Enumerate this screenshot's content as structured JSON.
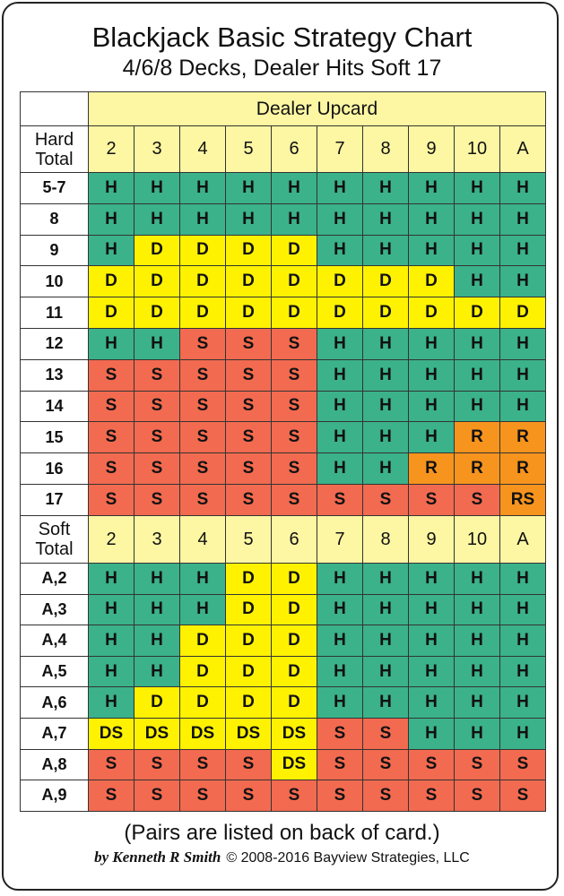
{
  "title": "Blackjack Basic Strategy Chart",
  "subtitle": "4/6/8 Decks, Dealer Hits Soft 17",
  "upcard_label": "Dealer Upcard",
  "cell_colors": {
    "H": "#3bb28a",
    "D": "#fff200",
    "DS": "#fff200",
    "S": "#f26a50",
    "R": "#f7941d",
    "RS": "#f7941d"
  },
  "header_color": "#fdf7a3",
  "sections": [
    {
      "label": "Hard Total",
      "upcards": [
        "2",
        "3",
        "4",
        "5",
        "6",
        "7",
        "8",
        "9",
        "10",
        "A"
      ],
      "rows": [
        {
          "label": "5-7",
          "cells": [
            "H",
            "H",
            "H",
            "H",
            "H",
            "H",
            "H",
            "H",
            "H",
            "H"
          ]
        },
        {
          "label": "8",
          "cells": [
            "H",
            "H",
            "H",
            "H",
            "H",
            "H",
            "H",
            "H",
            "H",
            "H"
          ]
        },
        {
          "label": "9",
          "cells": [
            "H",
            "D",
            "D",
            "D",
            "D",
            "H",
            "H",
            "H",
            "H",
            "H"
          ]
        },
        {
          "label": "10",
          "cells": [
            "D",
            "D",
            "D",
            "D",
            "D",
            "D",
            "D",
            "D",
            "H",
            "H"
          ]
        },
        {
          "label": "11",
          "cells": [
            "D",
            "D",
            "D",
            "D",
            "D",
            "D",
            "D",
            "D",
            "D",
            "D"
          ]
        },
        {
          "label": "12",
          "cells": [
            "H",
            "H",
            "S",
            "S",
            "S",
            "H",
            "H",
            "H",
            "H",
            "H"
          ]
        },
        {
          "label": "13",
          "cells": [
            "S",
            "S",
            "S",
            "S",
            "S",
            "H",
            "H",
            "H",
            "H",
            "H"
          ]
        },
        {
          "label": "14",
          "cells": [
            "S",
            "S",
            "S",
            "S",
            "S",
            "H",
            "H",
            "H",
            "H",
            "H"
          ]
        },
        {
          "label": "15",
          "cells": [
            "S",
            "S",
            "S",
            "S",
            "S",
            "H",
            "H",
            "H",
            "R",
            "R"
          ]
        },
        {
          "label": "16",
          "cells": [
            "S",
            "S",
            "S",
            "S",
            "S",
            "H",
            "H",
            "R",
            "R",
            "R"
          ]
        },
        {
          "label": "17",
          "cells": [
            "S",
            "S",
            "S",
            "S",
            "S",
            "S",
            "S",
            "S",
            "S",
            "RS"
          ]
        }
      ]
    },
    {
      "label": "Soft Total",
      "upcards": [
        "2",
        "3",
        "4",
        "5",
        "6",
        "7",
        "8",
        "9",
        "10",
        "A"
      ],
      "rows": [
        {
          "label": "A,2",
          "cells": [
            "H",
            "H",
            "H",
            "D",
            "D",
            "H",
            "H",
            "H",
            "H",
            "H"
          ]
        },
        {
          "label": "A,3",
          "cells": [
            "H",
            "H",
            "H",
            "D",
            "D",
            "H",
            "H",
            "H",
            "H",
            "H"
          ]
        },
        {
          "label": "A,4",
          "cells": [
            "H",
            "H",
            "D",
            "D",
            "D",
            "H",
            "H",
            "H",
            "H",
            "H"
          ]
        },
        {
          "label": "A,5",
          "cells": [
            "H",
            "H",
            "D",
            "D",
            "D",
            "H",
            "H",
            "H",
            "H",
            "H"
          ]
        },
        {
          "label": "A,6",
          "cells": [
            "H",
            "D",
            "D",
            "D",
            "D",
            "H",
            "H",
            "H",
            "H",
            "H"
          ]
        },
        {
          "label": "A,7",
          "cells": [
            "DS",
            "DS",
            "DS",
            "DS",
            "DS",
            "S",
            "S",
            "H",
            "H",
            "H"
          ]
        },
        {
          "label": "A,8",
          "cells": [
            "S",
            "S",
            "S",
            "S",
            "DS",
            "S",
            "S",
            "S",
            "S",
            "S"
          ]
        },
        {
          "label": "A,9",
          "cells": [
            "S",
            "S",
            "S",
            "S",
            "S",
            "S",
            "S",
            "S",
            "S",
            "S"
          ]
        }
      ]
    }
  ],
  "footnote": "(Pairs are listed on back of card.)",
  "author": "by Kenneth R Smith",
  "copyright": "© 2008-2016 Bayview Strategies, LLC"
}
